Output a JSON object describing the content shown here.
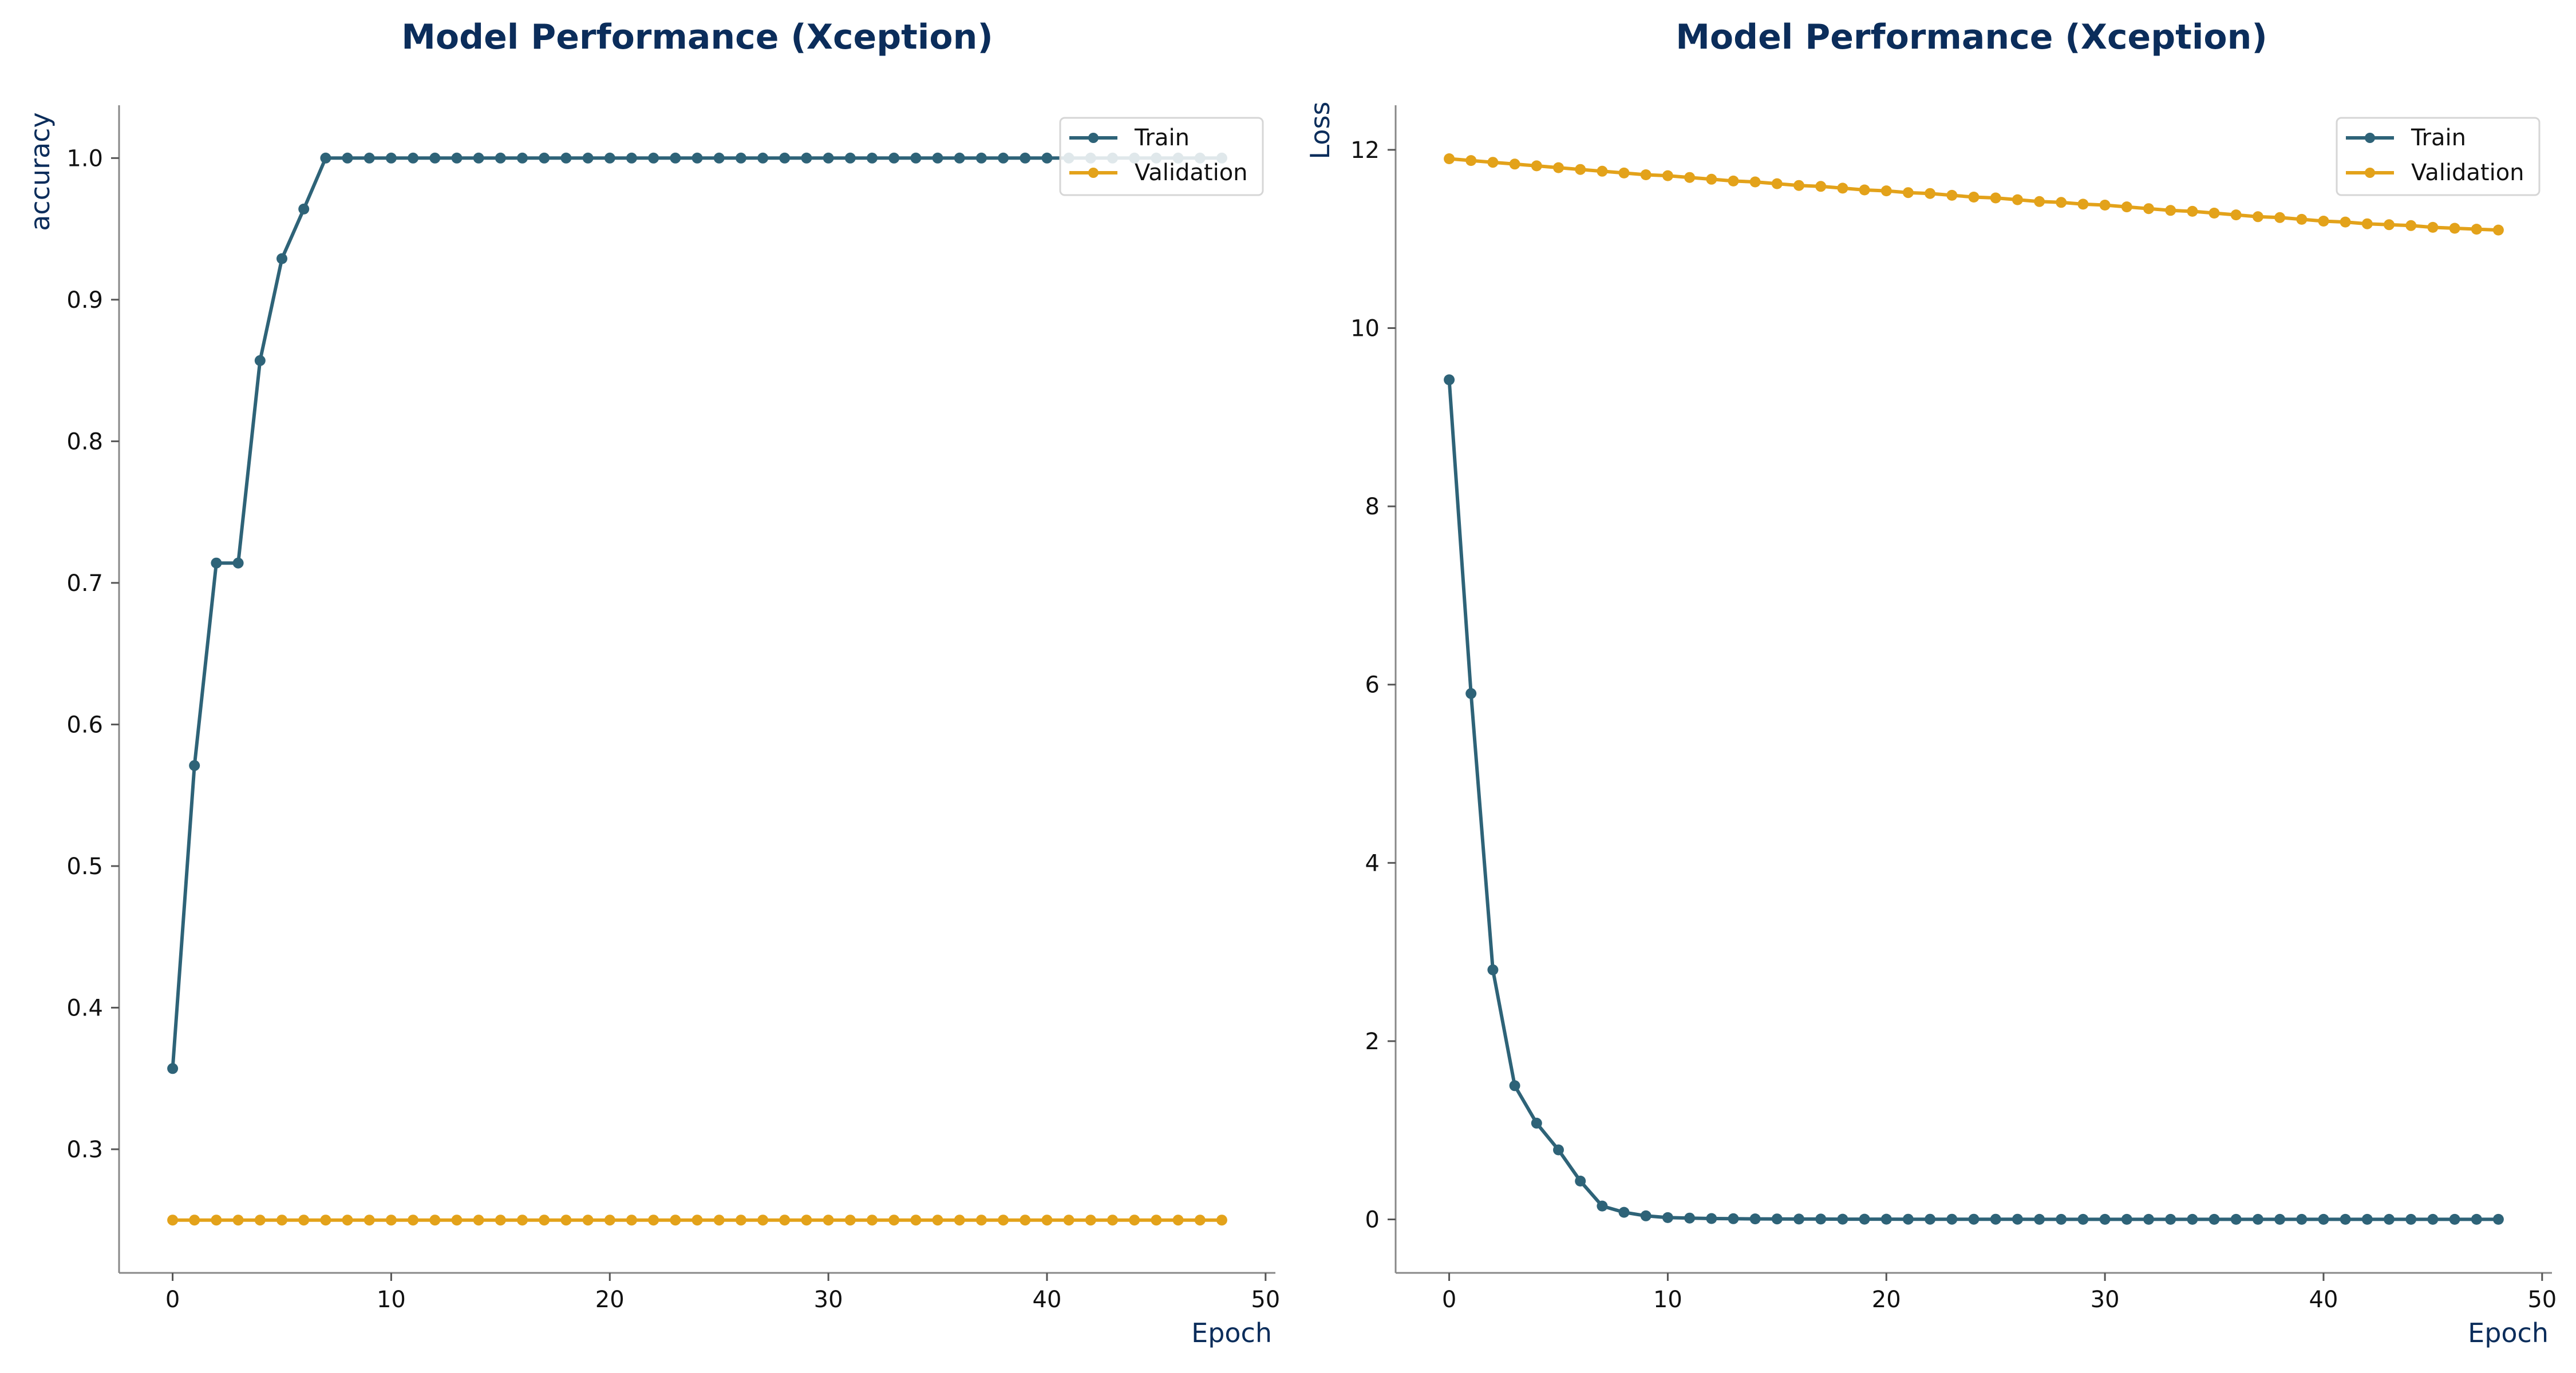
{
  "chart_data": [
    {
      "type": "line",
      "title": "Model Performance (Xception)",
      "xlabel": "Epoch",
      "ylabel": "accuracy",
      "xlim": [
        -2.45,
        50.45
      ],
      "ylim": [
        0.2127,
        1.0373
      ],
      "x_ticks": [
        0,
        10,
        20,
        30,
        40,
        50
      ],
      "y_ticks": [
        0.3,
        0.4,
        0.5,
        0.6,
        0.7,
        0.8,
        0.9,
        1.0
      ],
      "x_tick_labels": [
        "0",
        "10",
        "20",
        "30",
        "40",
        "50"
      ],
      "y_tick_labels": [
        "0.3",
        "0.4",
        "0.5",
        "0.6",
        "0.7",
        "0.8",
        "0.9",
        "1.0"
      ],
      "grid": false,
      "legend_position": "top-right",
      "x": [
        0,
        1,
        2,
        3,
        4,
        5,
        6,
        7,
        8,
        9,
        10,
        11,
        12,
        13,
        14,
        15,
        16,
        17,
        18,
        19,
        20,
        21,
        22,
        23,
        24,
        25,
        26,
        27,
        28,
        29,
        30,
        31,
        32,
        33,
        34,
        35,
        36,
        37,
        38,
        39,
        40,
        41,
        42,
        43,
        44,
        45,
        46,
        47,
        48
      ],
      "series": [
        {
          "name": "Train",
          "color": "#2e6378",
          "values": [
            0.357,
            0.571,
            0.714,
            0.714,
            0.857,
            0.929,
            0.964,
            1.0,
            1.0,
            1.0,
            1.0,
            1.0,
            1.0,
            1.0,
            1.0,
            1.0,
            1.0,
            1.0,
            1.0,
            1.0,
            1.0,
            1.0,
            1.0,
            1.0,
            1.0,
            1.0,
            1.0,
            1.0,
            1.0,
            1.0,
            1.0,
            1.0,
            1.0,
            1.0,
            1.0,
            1.0,
            1.0,
            1.0,
            1.0,
            1.0,
            1.0,
            1.0,
            1.0,
            1.0,
            1.0,
            1.0,
            1.0,
            1.0,
            1.0
          ]
        },
        {
          "name": "Validation",
          "color": "#e3a21a",
          "values": [
            0.25,
            0.25,
            0.25,
            0.25,
            0.25,
            0.25,
            0.25,
            0.25,
            0.25,
            0.25,
            0.25,
            0.25,
            0.25,
            0.25,
            0.25,
            0.25,
            0.25,
            0.25,
            0.25,
            0.25,
            0.25,
            0.25,
            0.25,
            0.25,
            0.25,
            0.25,
            0.25,
            0.25,
            0.25,
            0.25,
            0.25,
            0.25,
            0.25,
            0.25,
            0.25,
            0.25,
            0.25,
            0.25,
            0.25,
            0.25,
            0.25,
            0.25,
            0.25,
            0.25,
            0.25,
            0.25,
            0.25,
            0.25,
            0.25
          ]
        }
      ]
    },
    {
      "type": "line",
      "title": "Model Performance (Xception)",
      "xlabel": "Epoch",
      "ylabel": "Loss",
      "xlim": [
        -2.45,
        50.45
      ],
      "ylim": [
        -0.6,
        12.5
      ],
      "x_ticks": [
        0,
        10,
        20,
        30,
        40,
        50
      ],
      "y_ticks": [
        0,
        2,
        4,
        6,
        8,
        10,
        12
      ],
      "x_tick_labels": [
        "0",
        "10",
        "20",
        "30",
        "40",
        "50"
      ],
      "y_tick_labels": [
        "0",
        "2",
        "4",
        "6",
        "8",
        "10",
        "12"
      ],
      "grid": false,
      "legend_position": "top-right",
      "x": [
        0,
        1,
        2,
        3,
        4,
        5,
        6,
        7,
        8,
        9,
        10,
        11,
        12,
        13,
        14,
        15,
        16,
        17,
        18,
        19,
        20,
        21,
        22,
        23,
        24,
        25,
        26,
        27,
        28,
        29,
        30,
        31,
        32,
        33,
        34,
        35,
        36,
        37,
        38,
        39,
        40,
        41,
        42,
        43,
        44,
        45,
        46,
        47,
        48
      ],
      "series": [
        {
          "name": "Train",
          "color": "#2e6378",
          "values": [
            9.42,
            5.9,
            2.8,
            1.5,
            1.08,
            0.78,
            0.43,
            0.15,
            0.08,
            0.04,
            0.02,
            0.015,
            0.01,
            0.008,
            0.006,
            0.005,
            0.004,
            0.004,
            0.003,
            0.003,
            0.003,
            0.002,
            0.002,
            0.002,
            0.002,
            0.002,
            0.002,
            0.001,
            0.001,
            0.001,
            0.001,
            0.001,
            0.001,
            0.001,
            0.001,
            0.001,
            0.001,
            0.001,
            0.001,
            0.001,
            0.001,
            0.001,
            0.001,
            0.001,
            0.001,
            0.001,
            0.001,
            0.001,
            0.001
          ]
        },
        {
          "name": "Validation",
          "color": "#e3a21a",
          "values": [
            11.9,
            11.88,
            11.86,
            11.84,
            11.82,
            11.8,
            11.78,
            11.76,
            11.74,
            11.72,
            11.71,
            11.69,
            11.67,
            11.65,
            11.64,
            11.62,
            11.6,
            11.59,
            11.57,
            11.55,
            11.54,
            11.52,
            11.51,
            11.49,
            11.47,
            11.46,
            11.44,
            11.42,
            11.41,
            11.39,
            11.38,
            11.36,
            11.34,
            11.32,
            11.31,
            11.29,
            11.27,
            11.25,
            11.24,
            11.22,
            11.2,
            11.19,
            11.17,
            11.16,
            11.15,
            11.13,
            11.12,
            11.11,
            11.1
          ]
        }
      ]
    }
  ]
}
